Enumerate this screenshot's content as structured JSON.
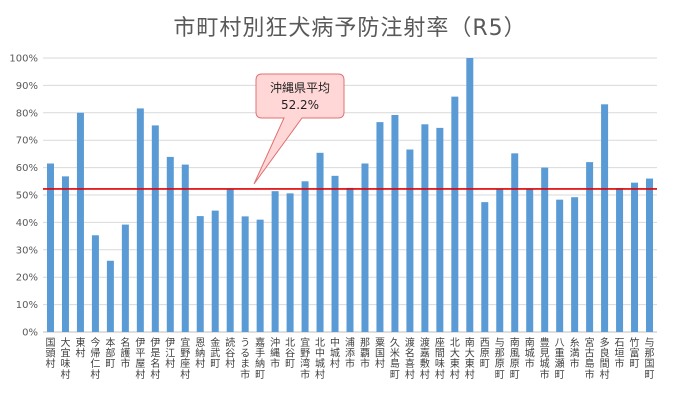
{
  "chart_data": {
    "type": "bar",
    "title": "市町村別狂犬病予防注射率（R5）",
    "categories": [
      "国頭村",
      "大宜味村",
      "東村",
      "今帰仁村",
      "本部町",
      "名護市",
      "伊平屋村",
      "伊是名村",
      "伊江村",
      "宜野座村",
      "恩納村",
      "金武町",
      "読谷村",
      "うるま市",
      "嘉手納町",
      "沖縄市",
      "北谷町",
      "宜野湾市",
      "北中城村",
      "中城村",
      "浦添市",
      "那覇市",
      "粟国村",
      "久米島町",
      "渡名喜村",
      "渡嘉敷村",
      "座間味村",
      "北大東村",
      "南大東村",
      "西原町",
      "与那原町",
      "南風原町",
      "南城市",
      "豊見城市",
      "八重瀬町",
      "糸満市",
      "宮古島市",
      "多良間村",
      "石垣市",
      "竹富町",
      "与那国町"
    ],
    "values": [
      61.5,
      56.8,
      80.0,
      35.3,
      26.0,
      39.2,
      81.6,
      75.4,
      63.9,
      61.1,
      42.3,
      44.3,
      52.0,
      42.2,
      41.0,
      51.4,
      50.6,
      55.0,
      65.4,
      57.0,
      52.6,
      61.5,
      76.6,
      79.2,
      66.6,
      75.8,
      74.5,
      85.9,
      100.0,
      47.4,
      52.0,
      65.2,
      52.2,
      60.0,
      48.3,
      49.2,
      62.0,
      83.1,
      52.5,
      54.5,
      56.0
    ],
    "ylim": [
      0,
      100
    ],
    "yticks": [
      "0%",
      "10%",
      "20%",
      "30%",
      "40%",
      "50%",
      "60%",
      "70%",
      "80%",
      "90%",
      "100%"
    ],
    "grid": true,
    "bar_color": "#5B9BD5",
    "reference_line": {
      "value": 52.2,
      "color": "#E00000"
    },
    "callout": {
      "label": "沖縄県平均",
      "value_label": "52.2%",
      "fill": "#FFD7D7",
      "stroke": "#E07070"
    }
  }
}
